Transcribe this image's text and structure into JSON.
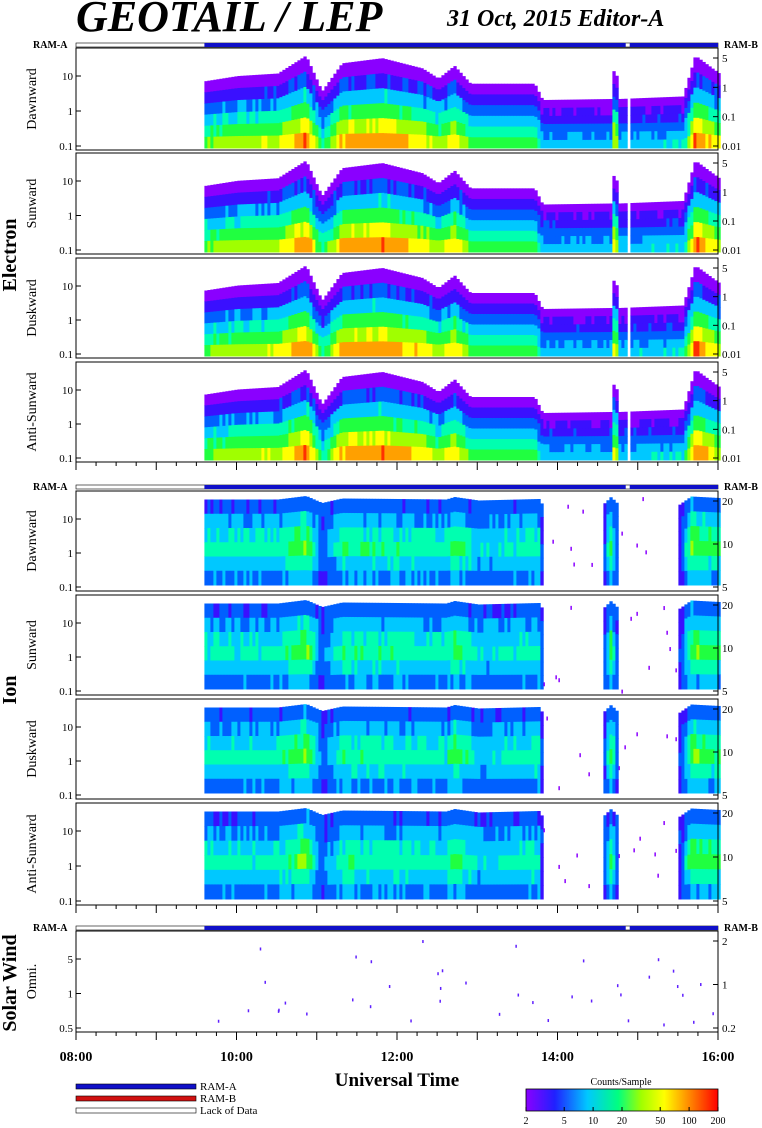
{
  "header": {
    "title": "GEOTAIL / LEP",
    "date_editor": "31 Oct, 2015   Editor-A"
  },
  "ram_labels": {
    "left": "RAM-A",
    "right": "RAM-B"
  },
  "groups": [
    {
      "name": "Electron",
      "panels": [
        "Dawnward",
        "Sunward",
        "Duskward",
        "Anti-Sunward"
      ]
    },
    {
      "name": "Ion",
      "panels": [
        "Dawnward",
        "Sunward",
        "Duskward",
        "Anti-Sunward"
      ]
    },
    {
      "name": "Solar Wind",
      "panels": [
        "Omni."
      ]
    }
  ],
  "x_axis": {
    "label": "Universal Time",
    "ticks": [
      "08:00",
      "10:00",
      "12:00",
      "14:00",
      "16:00"
    ]
  },
  "legend": {
    "items": [
      {
        "label": "RAM-A",
        "color": "#1010c8"
      },
      {
        "label": "RAM-B",
        "color": "#d01010"
      },
      {
        "label": "Lack of Data",
        "color": "#ffffff"
      }
    ]
  },
  "colorbar": {
    "title": "Counts/Sample",
    "ticks": [
      "2",
      "5",
      "10",
      "20",
      "50",
      "100",
      "200"
    ]
  },
  "chart_data": {
    "type": "heatmap",
    "title": "GEOTAIL / LEP",
    "xlabel": "Universal Time",
    "x_range_hours": [
      8,
      16
    ],
    "colorbar_range": [
      2,
      200
    ],
    "colorbar_scale": "log",
    "ram_a_coverage": [
      [
        9.6,
        14.85
      ],
      [
        14.9,
        16.0
      ]
    ],
    "lack_of_data": [
      [
        8.0,
        9.6
      ],
      [
        14.85,
        14.9
      ]
    ],
    "panels": [
      {
        "group": "Electron",
        "name": "Dawnward",
        "left_ticks": [
          "10",
          "1",
          "0.1"
        ],
        "right_ticks": [
          "5",
          "1",
          "0.1",
          "0.01"
        ],
        "scale": "log"
      },
      {
        "group": "Electron",
        "name": "Sunward",
        "left_ticks": [
          "10",
          "1",
          "0.1"
        ],
        "right_ticks": [
          "5",
          "1",
          "0.1",
          "0.01"
        ],
        "scale": "log"
      },
      {
        "group": "Electron",
        "name": "Duskward",
        "left_ticks": [
          "10",
          "1",
          "0.1"
        ],
        "right_ticks": [
          "5",
          "1",
          "0.1",
          "0.01"
        ],
        "scale": "log"
      },
      {
        "group": "Electron",
        "name": "Anti-Sunward",
        "left_ticks": [
          "10",
          "1",
          "0.1"
        ],
        "right_ticks": [
          "5",
          "1",
          "0.1",
          "0.01"
        ],
        "scale": "log"
      },
      {
        "group": "Ion",
        "name": "Dawnward",
        "left_ticks": [
          "10",
          "1",
          "0.1"
        ],
        "right_ticks": [
          "20",
          "10",
          "5"
        ],
        "scale": "log"
      },
      {
        "group": "Ion",
        "name": "Sunward",
        "left_ticks": [
          "10",
          "1",
          "0.1"
        ],
        "right_ticks": [
          "20",
          "10",
          "5"
        ],
        "scale": "log"
      },
      {
        "group": "Ion",
        "name": "Duskward",
        "left_ticks": [
          "10",
          "1",
          "0.1"
        ],
        "right_ticks": [
          "20",
          "10",
          "5"
        ],
        "scale": "log"
      },
      {
        "group": "Ion",
        "name": "Anti-Sunward",
        "left_ticks": [
          "10",
          "1",
          "0.1"
        ],
        "right_ticks": [
          "20",
          "10",
          "5"
        ],
        "scale": "log"
      },
      {
        "group": "Solar Wind",
        "name": "Omni.",
        "left_ticks": [
          "5",
          "1",
          "0.5"
        ],
        "right_ticks": [
          "2",
          "1",
          "0.2"
        ],
        "scale": "log"
      }
    ],
    "electron_intensity_profile": [
      [
        9.6,
        0.45
      ],
      [
        10.0,
        0.55
      ],
      [
        10.5,
        0.6
      ],
      [
        10.85,
        0.95
      ],
      [
        11.05,
        0.25
      ],
      [
        11.3,
        0.8
      ],
      [
        11.8,
        0.9
      ],
      [
        12.3,
        0.7
      ],
      [
        12.5,
        0.5
      ],
      [
        12.7,
        0.75
      ],
      [
        12.9,
        0.4
      ],
      [
        13.7,
        0.4
      ],
      [
        13.8,
        0.08
      ],
      [
        14.65,
        0.1
      ],
      [
        14.7,
        0.9
      ],
      [
        14.75,
        0.1
      ],
      [
        15.55,
        0.15
      ],
      [
        15.7,
        0.95
      ],
      [
        16.0,
        0.6
      ]
    ],
    "ion_intensity_profile": [
      [
        9.6,
        0.55
      ],
      [
        10.5,
        0.55
      ],
      [
        10.85,
        0.9
      ],
      [
        11.05,
        0.2
      ],
      [
        11.3,
        0.65
      ],
      [
        12.0,
        0.6
      ],
      [
        12.6,
        0.55
      ],
      [
        12.7,
        0.8
      ],
      [
        13.0,
        0.45
      ],
      [
        13.75,
        0.6
      ],
      [
        13.8,
        0.0
      ],
      [
        14.55,
        0.0
      ],
      [
        14.65,
        0.8
      ],
      [
        14.75,
        0.0
      ],
      [
        15.5,
        0.0
      ],
      [
        15.65,
        0.85
      ],
      [
        16.0,
        0.7
      ]
    ]
  }
}
